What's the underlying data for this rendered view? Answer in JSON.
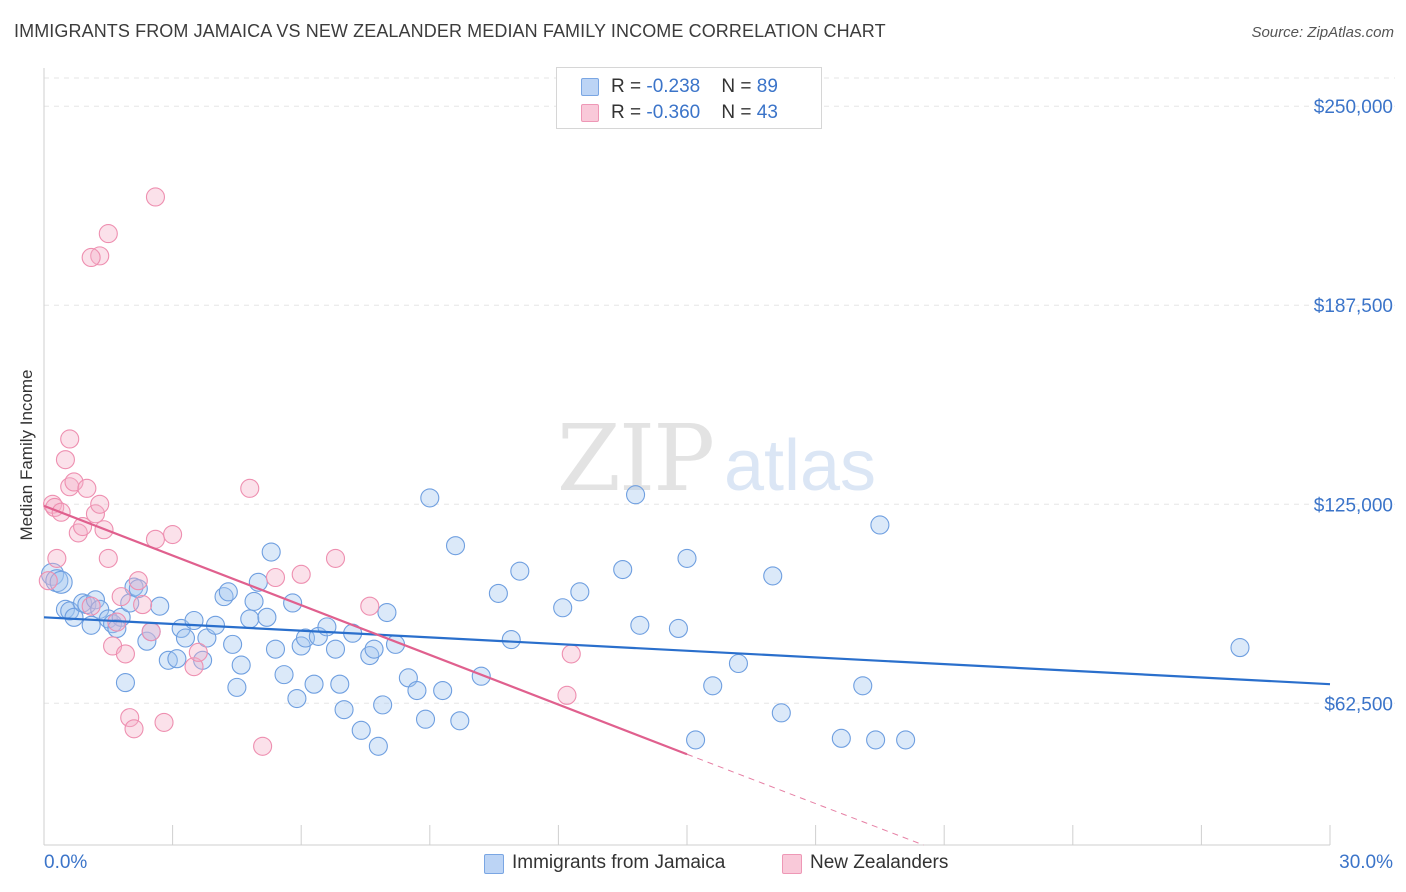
{
  "chart_data": {
    "type": "scatter",
    "title": "IMMIGRANTS FROM JAMAICA VS NEW ZEALANDER MEDIAN FAMILY INCOME CORRELATION CHART",
    "source": "Source: ZipAtlas.com",
    "watermark": {
      "part1": "ZIP",
      "part2": "atlas"
    },
    "xlabel": "",
    "ylabel": "Median Family Income",
    "xlim": [
      0,
      30
    ],
    "ylim": [
      18000,
      262000
    ],
    "x_tick_labels": {
      "left": "0.0%",
      "right": "30.0%"
    },
    "y_ticks": [
      {
        "value": 250000,
        "label": "$250,000"
      },
      {
        "value": 187500,
        "label": "$187,500"
      },
      {
        "value": 125000,
        "label": "$125,000"
      },
      {
        "value": 62500,
        "label": "$62,500"
      }
    ],
    "stats_legend": [
      {
        "r_label": "R = ",
        "r_value": "-0.238",
        "n_label": "N = ",
        "n_value": "89"
      },
      {
        "r_label": "R = ",
        "r_value": "-0.360",
        "n_label": "N = ",
        "n_value": "43"
      }
    ],
    "series": [
      {
        "name": "Immigrants from Jamaica",
        "color": "#6f9fe0",
        "line_color": "#2a6fcc",
        "trend": {
          "x0": 0,
          "y0": 89500,
          "x1": 30,
          "y1": 68500
        },
        "points": [
          [
            0.2,
            103000
          ],
          [
            0.3,
            101000
          ],
          [
            0.4,
            100500
          ],
          [
            0.5,
            92000
          ],
          [
            0.6,
            91500
          ],
          [
            0.7,
            89500
          ],
          [
            0.9,
            94000
          ],
          [
            1.0,
            93500
          ],
          [
            1.2,
            95000
          ],
          [
            1.1,
            87000
          ],
          [
            1.3,
            92000
          ],
          [
            1.5,
            89000
          ],
          [
            1.6,
            87500
          ],
          [
            1.8,
            89500
          ],
          [
            1.7,
            86000
          ],
          [
            2.0,
            94000
          ],
          [
            2.1,
            99000
          ],
          [
            2.2,
            98500
          ],
          [
            2.4,
            82000
          ],
          [
            2.5,
            85000
          ],
          [
            2.7,
            93000
          ],
          [
            2.9,
            76000
          ],
          [
            3.1,
            76500
          ],
          [
            3.2,
            86000
          ],
          [
            3.3,
            83000
          ],
          [
            3.5,
            88500
          ],
          [
            3.7,
            76000
          ],
          [
            3.8,
            83000
          ],
          [
            4.0,
            87000
          ],
          [
            4.2,
            96000
          ],
          [
            4.3,
            97500
          ],
          [
            4.4,
            81000
          ],
          [
            4.5,
            67500
          ],
          [
            4.6,
            74500
          ],
          [
            4.8,
            89000
          ],
          [
            4.9,
            94500
          ],
          [
            5.0,
            100500
          ],
          [
            5.2,
            89500
          ],
          [
            5.3,
            110000
          ],
          [
            5.4,
            79500
          ],
          [
            5.6,
            71500
          ],
          [
            5.8,
            94000
          ],
          [
            5.9,
            64000
          ],
          [
            6.0,
            80500
          ],
          [
            6.1,
            83000
          ],
          [
            6.3,
            68500
          ],
          [
            6.4,
            83500
          ],
          [
            6.6,
            86500
          ],
          [
            6.8,
            79500
          ],
          [
            6.9,
            68500
          ],
          [
            7.0,
            60500
          ],
          [
            7.2,
            84500
          ],
          [
            7.4,
            54000
          ],
          [
            7.6,
            77500
          ],
          [
            7.7,
            79500
          ],
          [
            7.8,
            49000
          ],
          [
            7.9,
            62000
          ],
          [
            8.0,
            91000
          ],
          [
            8.2,
            81000
          ],
          [
            8.5,
            70500
          ],
          [
            8.7,
            66500
          ],
          [
            8.9,
            57500
          ],
          [
            9.0,
            127000
          ],
          [
            9.3,
            66500
          ],
          [
            9.6,
            112000
          ],
          [
            9.7,
            57000
          ],
          [
            10.2,
            71000
          ],
          [
            10.6,
            97000
          ],
          [
            10.9,
            82500
          ],
          [
            11.1,
            104000
          ],
          [
            12.1,
            92500
          ],
          [
            12.5,
            97500
          ],
          [
            13.5,
            104500
          ],
          [
            13.8,
            128000
          ],
          [
            13.9,
            87000
          ],
          [
            14.8,
            86000
          ],
          [
            15.0,
            108000
          ],
          [
            15.6,
            68000
          ],
          [
            15.2,
            51000
          ],
          [
            16.2,
            75000
          ],
          [
            17.0,
            102500
          ],
          [
            17.2,
            59500
          ],
          [
            18.6,
            51500
          ],
          [
            19.1,
            68000
          ],
          [
            19.4,
            51000
          ],
          [
            20.1,
            51000
          ],
          [
            19.5,
            118500
          ],
          [
            27.9,
            80000
          ],
          [
            1.9,
            69000
          ]
        ]
      },
      {
        "name": "New Zealanders",
        "color": "#ee8fb0",
        "line_color": "#e0608e",
        "trend": {
          "x0": 0,
          "y0": 124500,
          "x1": 15.0,
          "y1": 46500
        },
        "trend_dashed": {
          "x0": 15.0,
          "y0": 46500,
          "x1": 24.0,
          "y1": 0
        },
        "points": [
          [
            0.1,
            101000
          ],
          [
            0.2,
            125000
          ],
          [
            0.25,
            124000
          ],
          [
            0.3,
            108000
          ],
          [
            0.4,
            122500
          ],
          [
            0.5,
            139000
          ],
          [
            0.6,
            130500
          ],
          [
            0.7,
            132000
          ],
          [
            0.6,
            145500
          ],
          [
            0.8,
            116000
          ],
          [
            0.9,
            118000
          ],
          [
            1.0,
            130000
          ],
          [
            1.1,
            93000
          ],
          [
            1.2,
            122000
          ],
          [
            1.3,
            125000
          ],
          [
            1.4,
            117000
          ],
          [
            1.5,
            108000
          ],
          [
            1.6,
            80500
          ],
          [
            1.7,
            88000
          ],
          [
            1.8,
            96000
          ],
          [
            1.9,
            78000
          ],
          [
            2.0,
            58000
          ],
          [
            2.1,
            54500
          ],
          [
            2.2,
            101000
          ],
          [
            2.3,
            93500
          ],
          [
            2.5,
            85000
          ],
          [
            2.6,
            114000
          ],
          [
            2.8,
            56500
          ],
          [
            3.0,
            115500
          ],
          [
            3.5,
            74000
          ],
          [
            3.6,
            78500
          ],
          [
            4.8,
            130000
          ],
          [
            5.1,
            49000
          ],
          [
            5.4,
            102000
          ],
          [
            6.0,
            103000
          ],
          [
            6.8,
            108000
          ],
          [
            7.6,
            93000
          ],
          [
            12.3,
            78000
          ],
          [
            12.2,
            65000
          ],
          [
            1.5,
            210000
          ],
          [
            1.3,
            203000
          ],
          [
            1.1,
            202500
          ],
          [
            2.6,
            221500
          ]
        ]
      }
    ]
  }
}
